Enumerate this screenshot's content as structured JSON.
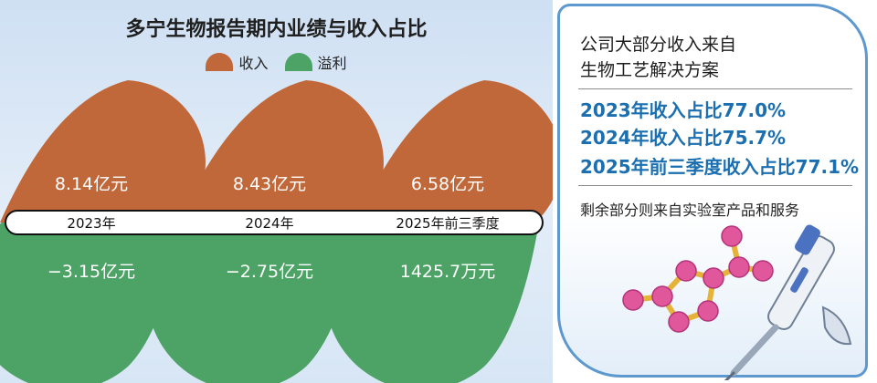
{
  "chart_data": {
    "type": "radial-bar",
    "title": "多宁生物报告期内业绩与收入占比",
    "legend": [
      "收入",
      "溢利"
    ],
    "categories": [
      "2023年",
      "2024年",
      "2025年前三季度"
    ],
    "series": [
      {
        "name": "收入",
        "labels": [
          "8.14亿元",
          "8.43亿元",
          "6.58亿元"
        ],
        "values_yi": [
          8.14,
          8.43,
          6.58
        ]
      },
      {
        "name": "溢利",
        "labels": [
          "−3.15亿元",
          "−2.75亿元",
          "1425.7万元"
        ],
        "values_yi": [
          -3.15,
          -2.75,
          0.142571
        ]
      }
    ],
    "colors": {
      "revenue": "#c1683a",
      "profit": "#4da265",
      "band": "#ffffff"
    }
  },
  "panel": {
    "title_line1": "公司大部分收入来自",
    "title_line2": "生物工艺解决方案",
    "stats": [
      "2023年收入占比77.0%",
      "2024年收入占比75.7%",
      "2025年前三季度收入占比77.1%"
    ],
    "note": "剩余部分则来自实验室产品和服务"
  },
  "decor": {
    "illustration": "molecule-and-pipette-icon"
  }
}
